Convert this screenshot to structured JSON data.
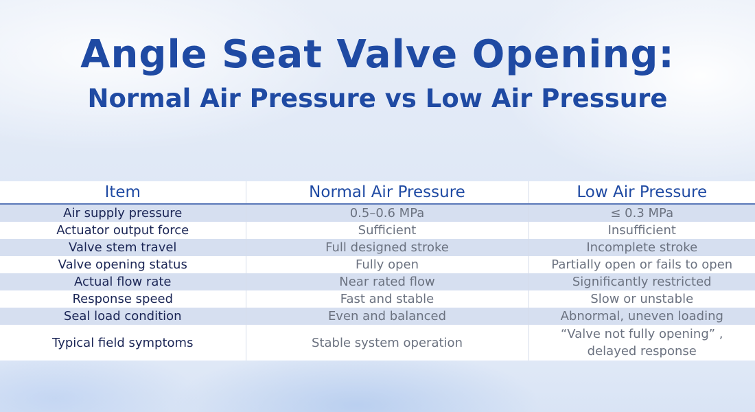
{
  "title": {
    "main": "Angle Seat Valve Opening:",
    "sub": "Normal Air Pressure vs Low Air Pressure"
  },
  "table": {
    "headers": [
      "Item",
      "Normal Air Pressure",
      "Low Air Pressure"
    ],
    "rows": [
      [
        "Air supply pressure",
        "0.5–0.6 MPa",
        "≤ 0.3 MPa"
      ],
      [
        "Actuator output force",
        "Sufficient",
        "Insufficient"
      ],
      [
        "Valve stem travel",
        "Full designed stroke",
        "Incomplete stroke"
      ],
      [
        "Valve opening status",
        "Fully open",
        "Partially open or fails to open"
      ],
      [
        "Actual flow rate",
        "Near rated flow",
        "Significantly restricted"
      ],
      [
        "Response speed",
        "Fast and stable",
        "Slow or unstable"
      ],
      [
        "Seal load condition",
        "Even and balanced",
        "Abnormal, uneven loading"
      ],
      [
        "Typical field symptoms",
        "Stable system operation",
        "“Valve not fully opening” ,"
      ]
    ],
    "last_row_extra_line": "delayed response"
  }
}
